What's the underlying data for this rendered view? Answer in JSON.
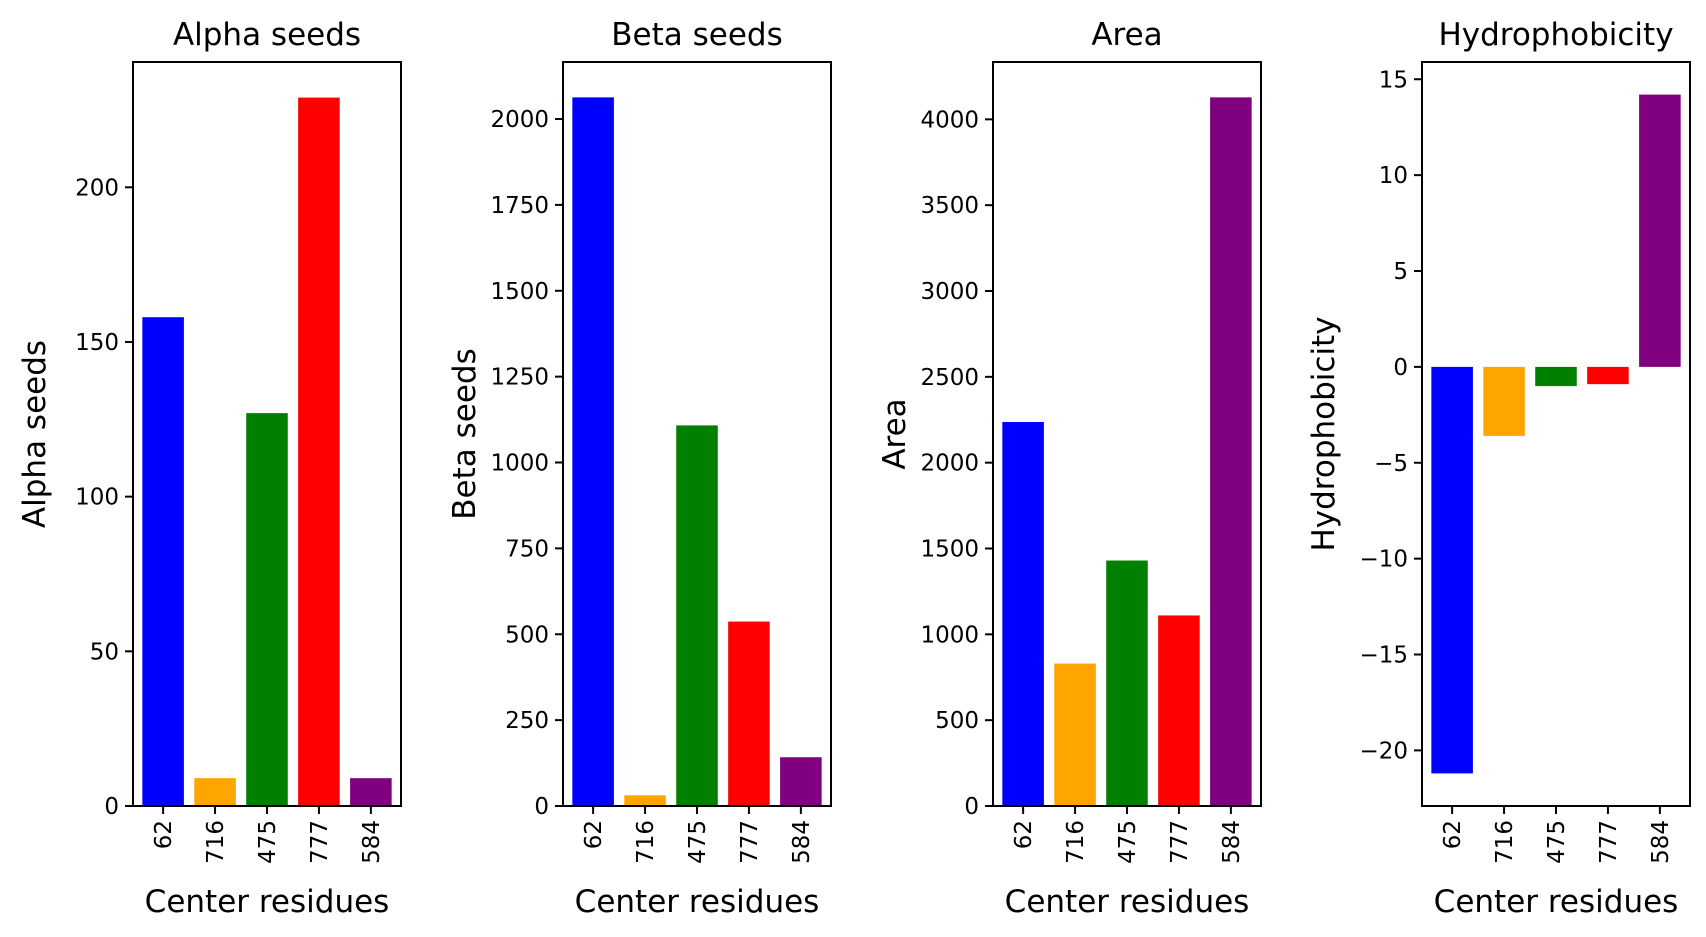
{
  "chart_data": [
    {
      "type": "bar",
      "title": "Alpha seeds",
      "xlabel": "Center residues",
      "ylabel": "Alpha seeds",
      "categories": [
        "62",
        "716",
        "475",
        "777",
        "584"
      ],
      "values": [
        158,
        9,
        127,
        229,
        9
      ],
      "colors": [
        "#0000ff",
        "#ffa500",
        "#008000",
        "#ff0000",
        "#800080"
      ],
      "ylim": [
        0,
        240.5
      ],
      "yticks": [
        0,
        50,
        100,
        150,
        200
      ],
      "ytick_labels": [
        "0",
        "50",
        "100",
        "150",
        "200"
      ]
    },
    {
      "type": "bar",
      "title": "Beta seeds",
      "xlabel": "Center residues",
      "ylabel": "Beta seeds",
      "categories": [
        "62",
        "716",
        "475",
        "777",
        "584"
      ],
      "values": [
        2063,
        31,
        1108,
        537,
        142
      ],
      "colors": [
        "#0000ff",
        "#ffa500",
        "#008000",
        "#ff0000",
        "#800080"
      ],
      "ylim": [
        0,
        2166
      ],
      "yticks": [
        0,
        250,
        500,
        750,
        1000,
        1250,
        1500,
        1750,
        2000
      ],
      "ytick_labels": [
        "0",
        "250",
        "500",
        "750",
        "1000",
        "1250",
        "1500",
        "1750",
        "2000"
      ]
    },
    {
      "type": "bar",
      "title": "Area",
      "xlabel": "Center residues",
      "ylabel": "Area",
      "categories": [
        "62",
        "716",
        "475",
        "777",
        "584"
      ],
      "values": [
        2237,
        830,
        1430,
        1110,
        4128
      ],
      "colors": [
        "#0000ff",
        "#ffa500",
        "#008000",
        "#ff0000",
        "#800080"
      ],
      "ylim": [
        0,
        4334
      ],
      "yticks": [
        0,
        500,
        1000,
        1500,
        2000,
        2500,
        3000,
        3500,
        4000
      ],
      "ytick_labels": [
        "0",
        "500",
        "1000",
        "1500",
        "2000",
        "2500",
        "3000",
        "3500",
        "4000"
      ]
    },
    {
      "type": "bar",
      "title": "Hydrophobicity",
      "xlabel": "Center residues",
      "ylabel": "Hydrophobicity",
      "categories": [
        "62",
        "716",
        "475",
        "777",
        "584"
      ],
      "values": [
        -21.2,
        -3.6,
        -1.0,
        -0.9,
        14.2
      ],
      "colors": [
        "#0000ff",
        "#ffa500",
        "#008000",
        "#ff0000",
        "#800080"
      ],
      "ylim": [
        -22.9,
        15.9
      ],
      "yticks": [
        -20,
        -15,
        -10,
        -5,
        0,
        5,
        10,
        15
      ],
      "ytick_labels": [
        "−20",
        "−15",
        "−10",
        "−5",
        "0",
        "5",
        "10",
        "15"
      ]
    }
  ]
}
